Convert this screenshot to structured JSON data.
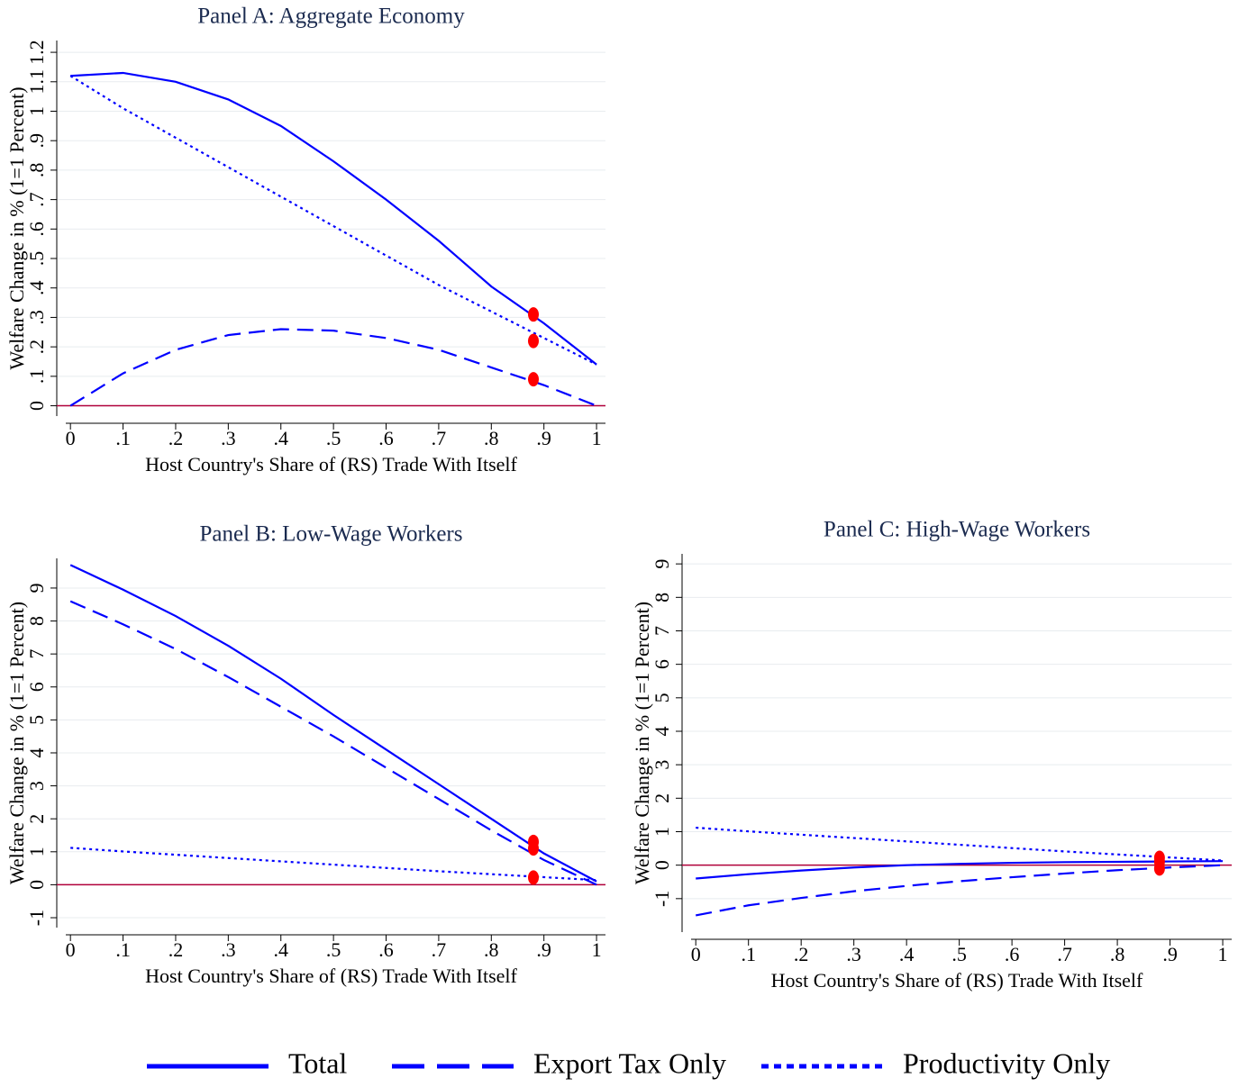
{
  "chart_data": [
    {
      "type": "line",
      "title": "Panel A: Aggregate Economy",
      "xlabel": "Host Country's Share of (RS) Trade With Itself",
      "ylabel": "Welfare Change in % (1=1 Percent)",
      "x": [
        0,
        0.1,
        0.2,
        0.3,
        0.4,
        0.5,
        0.6,
        0.7,
        0.8,
        0.9,
        1
      ],
      "xlim": [
        -0.026,
        1.017
      ],
      "ylim": [
        -0.035,
        1.24
      ],
      "xticks": [
        0,
        {
          "value": 0.1,
          "label": ".1"
        },
        {
          "value": 0.2,
          "label": ".2"
        },
        {
          "value": 0.3,
          "label": ".3"
        },
        {
          "value": 0.4,
          "label": ".4"
        },
        {
          "value": 0.5,
          "label": ".5"
        },
        {
          "value": 0.6,
          "label": ".6"
        },
        {
          "value": 0.7,
          "label": ".7"
        },
        {
          "value": 0.8,
          "label": ".8"
        },
        {
          "value": 0.9,
          "label": ".9"
        },
        1
      ],
      "yticks": [
        0,
        {
          "value": 0.1,
          "label": ".1"
        },
        {
          "value": 0.2,
          "label": ".2"
        },
        {
          "value": 0.3,
          "label": ".3"
        },
        {
          "value": 0.4,
          "label": ".4"
        },
        {
          "value": 0.5,
          "label": ".5"
        },
        {
          "value": 0.6,
          "label": ".6"
        },
        {
          "value": 0.7,
          "label": ".7"
        },
        {
          "value": 0.8,
          "label": ".8"
        },
        {
          "value": 0.9,
          "label": ".9"
        },
        1,
        1.1,
        1.2
      ],
      "grid": true,
      "reference_line": {
        "y": 0,
        "color": "#b0003a"
      },
      "marker_x": 0.88,
      "marker_color": "#ff0000",
      "series": [
        {
          "name": "Total",
          "color": "#0000ff",
          "style": "solid",
          "values": [
            1.12,
            1.13,
            1.1,
            1.04,
            0.95,
            0.83,
            0.7,
            0.56,
            0.405,
            0.28,
            0.14
          ],
          "marker_value": 0.31
        },
        {
          "name": "Export Tax Only",
          "color": "#0000ff",
          "style": "dashed",
          "values": [
            0,
            0.11,
            0.19,
            0.24,
            0.26,
            0.255,
            0.23,
            0.19,
            0.13,
            0.07,
            0
          ],
          "marker_value": 0.09
        },
        {
          "name": "Productivity Only",
          "color": "#0000ff",
          "style": "dotted",
          "values": [
            1.12,
            1.01,
            0.91,
            0.81,
            0.71,
            0.61,
            0.51,
            0.41,
            0.32,
            0.23,
            0.14
          ],
          "marker_value": 0.22
        }
      ]
    },
    {
      "type": "line",
      "title": "Panel B: Low-Wage Workers",
      "xlabel": "Host Country's Share of (RS) Trade With Itself",
      "ylabel": "Welfare Change in % (1=1 Percent)",
      "x": [
        0,
        0.1,
        0.2,
        0.3,
        0.4,
        0.5,
        0.6,
        0.7,
        0.8,
        0.9,
        1
      ],
      "xlim": [
        -0.026,
        1.017
      ],
      "ylim": [
        -1.3,
        9.9
      ],
      "xticks": [
        0,
        {
          "value": 0.1,
          "label": ".1"
        },
        {
          "value": 0.2,
          "label": ".2"
        },
        {
          "value": 0.3,
          "label": ".3"
        },
        {
          "value": 0.4,
          "label": ".4"
        },
        {
          "value": 0.5,
          "label": ".5"
        },
        {
          "value": 0.6,
          "label": ".6"
        },
        {
          "value": 0.7,
          "label": ".7"
        },
        {
          "value": 0.8,
          "label": ".8"
        },
        {
          "value": 0.9,
          "label": ".9"
        },
        1
      ],
      "yticks": [
        -1,
        0,
        1,
        2,
        3,
        4,
        5,
        6,
        7,
        8,
        9
      ],
      "grid": true,
      "reference_line": {
        "y": 0,
        "color": "#b0003a"
      },
      "marker_x": 0.88,
      "marker_color": "#ff0000",
      "series": [
        {
          "name": "Total",
          "color": "#0000ff",
          "style": "solid",
          "values": [
            9.7,
            8.95,
            8.15,
            7.25,
            6.25,
            5.15,
            4.1,
            3.05,
            2.0,
            0.95,
            0.1
          ],
          "marker_value": 1.3
        },
        {
          "name": "Export Tax Only",
          "color": "#0000ff",
          "style": "dashed",
          "values": [
            8.6,
            7.9,
            7.15,
            6.3,
            5.4,
            4.5,
            3.55,
            2.6,
            1.65,
            0.75,
            0
          ],
          "marker_value": 1.1
        },
        {
          "name": "Productivity Only",
          "color": "#0000ff",
          "style": "dotted",
          "values": [
            1.12,
            1.01,
            0.91,
            0.81,
            0.71,
            0.61,
            0.51,
            0.41,
            0.32,
            0.23,
            0.14
          ],
          "marker_value": 0.22
        }
      ]
    },
    {
      "type": "line",
      "title": "Panel C: High-Wage Workers",
      "xlabel": "Host Country's Share of (RS) Trade With Itself",
      "ylabel": "Welfare Change in % (1=1 Percent)",
      "x": [
        0,
        0.1,
        0.2,
        0.3,
        0.4,
        0.5,
        0.6,
        0.7,
        0.8,
        0.9,
        1
      ],
      "xlim": [
        -0.026,
        1.017
      ],
      "ylim": [
        -2,
        9.3
      ],
      "xticks": [
        0,
        {
          "value": 0.1,
          "label": ".1"
        },
        {
          "value": 0.2,
          "label": ".2"
        },
        {
          "value": 0.3,
          "label": ".3"
        },
        {
          "value": 0.4,
          "label": ".4"
        },
        {
          "value": 0.5,
          "label": ".5"
        },
        {
          "value": 0.6,
          "label": ".6"
        },
        {
          "value": 0.7,
          "label": ".7"
        },
        {
          "value": 0.8,
          "label": ".8"
        },
        {
          "value": 0.9,
          "label": ".9"
        },
        1
      ],
      "yticks": [
        -1,
        0,
        1,
        2,
        3,
        4,
        5,
        6,
        7,
        8,
        9
      ],
      "grid": true,
      "reference_line": {
        "y": 0,
        "color": "#b0003a"
      },
      "marker_x": 0.88,
      "marker_color": "#ff0000",
      "series": [
        {
          "name": "Total",
          "color": "#0000ff",
          "style": "solid",
          "values": [
            -0.4,
            -0.27,
            -0.16,
            -0.07,
            0,
            0.04,
            0.07,
            0.09,
            0.1,
            0.11,
            0.12
          ],
          "marker_value": 0.1
        },
        {
          "name": "Export Tax Only",
          "color": "#0000ff",
          "style": "dashed",
          "values": [
            -1.5,
            -1.2,
            -0.98,
            -0.78,
            -0.62,
            -0.48,
            -0.36,
            -0.25,
            -0.15,
            -0.07,
            0
          ],
          "marker_value": -0.1
        },
        {
          "name": "Productivity Only",
          "color": "#0000ff",
          "style": "dotted",
          "values": [
            1.12,
            1.01,
            0.91,
            0.81,
            0.71,
            0.61,
            0.51,
            0.41,
            0.32,
            0.23,
            0.14
          ],
          "marker_value": 0.22
        }
      ]
    }
  ]
}
